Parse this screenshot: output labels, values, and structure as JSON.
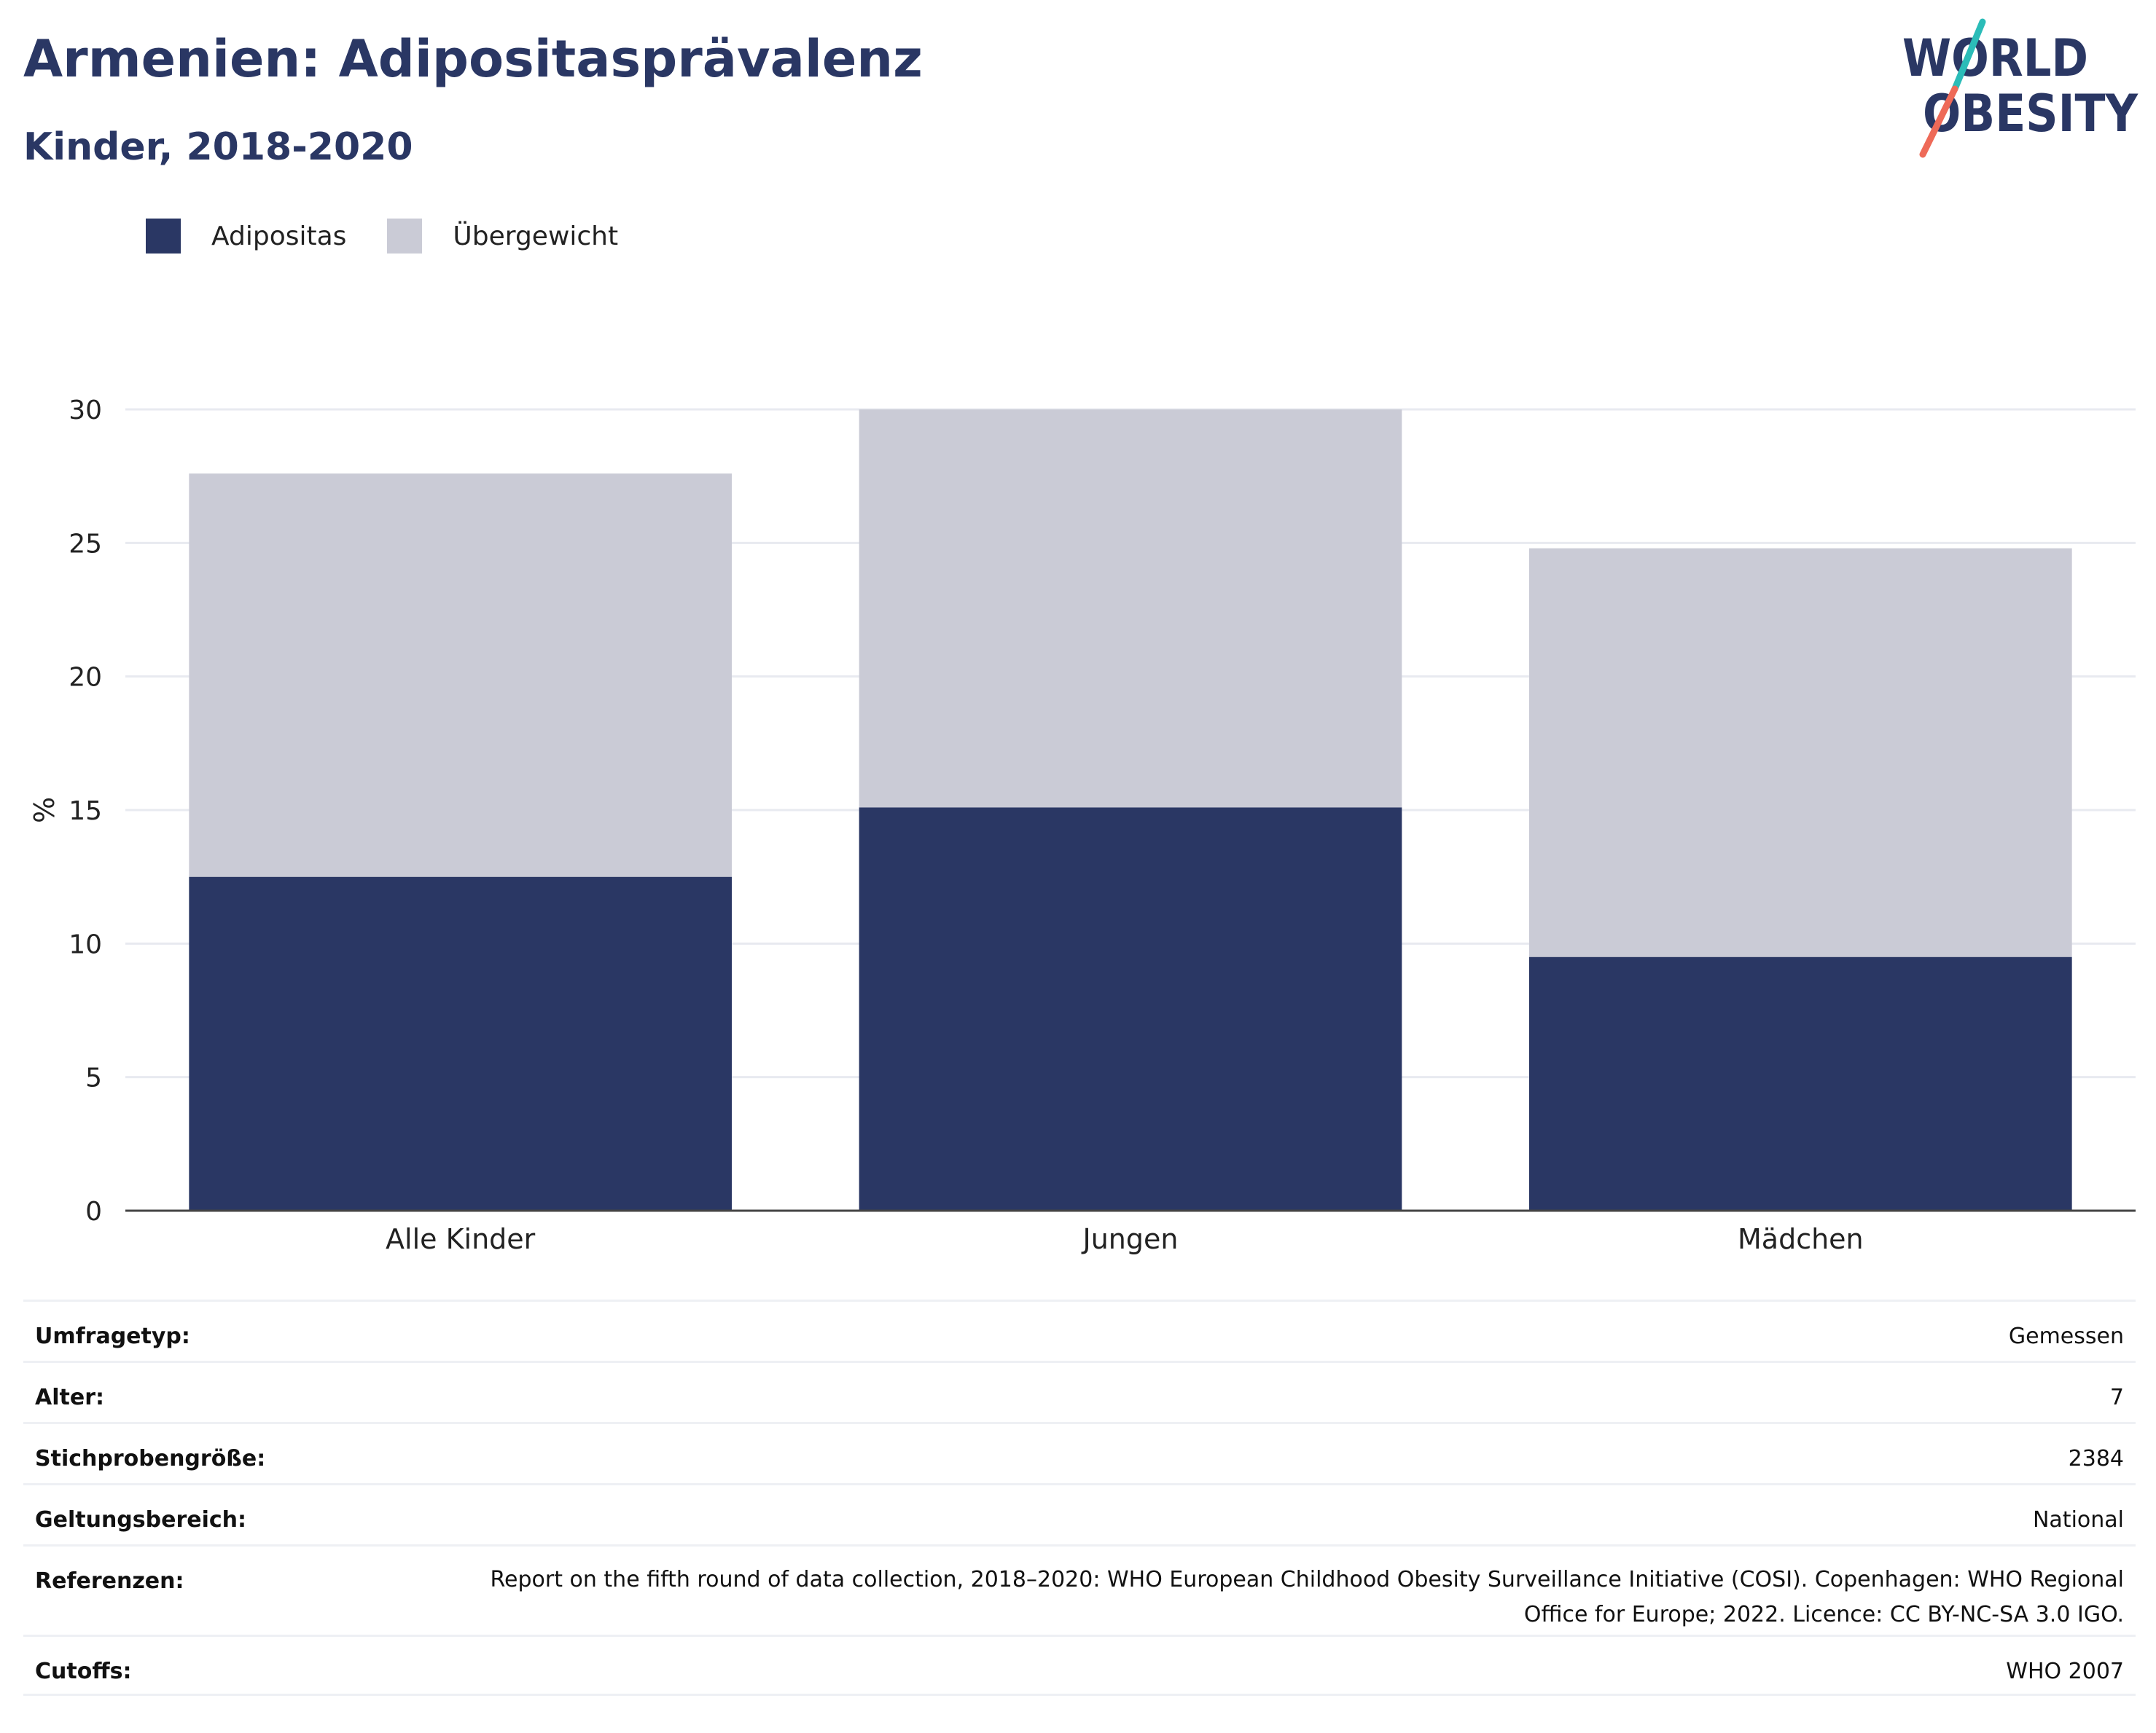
{
  "header": {
    "title": "Armenien: Adipositasprävalenz",
    "subtitle": "Kinder, 2018-2020",
    "logo_text": [
      "WORLD",
      "OBESITY"
    ]
  },
  "legend": [
    {
      "label": "Adipositas",
      "color": "#2a3764"
    },
    {
      "label": "Übergewicht",
      "color": "#cacbd6"
    }
  ],
  "chart_data": {
    "type": "bar",
    "stacked": true,
    "categories": [
      "Alle Kinder",
      "Jungen",
      "Mädchen"
    ],
    "series": [
      {
        "name": "Adipositas",
        "values": [
          12.5,
          15.1,
          9.5
        ],
        "color": "#2a3764"
      },
      {
        "name": "Übergewicht",
        "values": [
          15.1,
          14.9,
          15.3
        ],
        "color": "#cacbd6"
      }
    ],
    "ylabel": "%",
    "ylim": [
      0,
      30
    ],
    "yticks": [
      0,
      5,
      10,
      15,
      20,
      25,
      30
    ],
    "grid": true
  },
  "meta": [
    {
      "key": "Umfragetyp:",
      "value": "Gemessen"
    },
    {
      "key": "Alter:",
      "value": "7"
    },
    {
      "key": "Stichprobengröße:",
      "value": "2384"
    },
    {
      "key": "Geltungsbereich:",
      "value": "National"
    },
    {
      "key": "Referenzen:",
      "value": "Report on the fifth round of data collection, 2018–2020: WHO European Childhood Obesity Surveillance Initiative (COSI). Copenhagen: WHO Regional Office for Europe; 2022. Licence: CC BY-NC-SA 3.0 IGO."
    },
    {
      "key": "Cutoffs:",
      "value": "WHO 2007"
    }
  ]
}
